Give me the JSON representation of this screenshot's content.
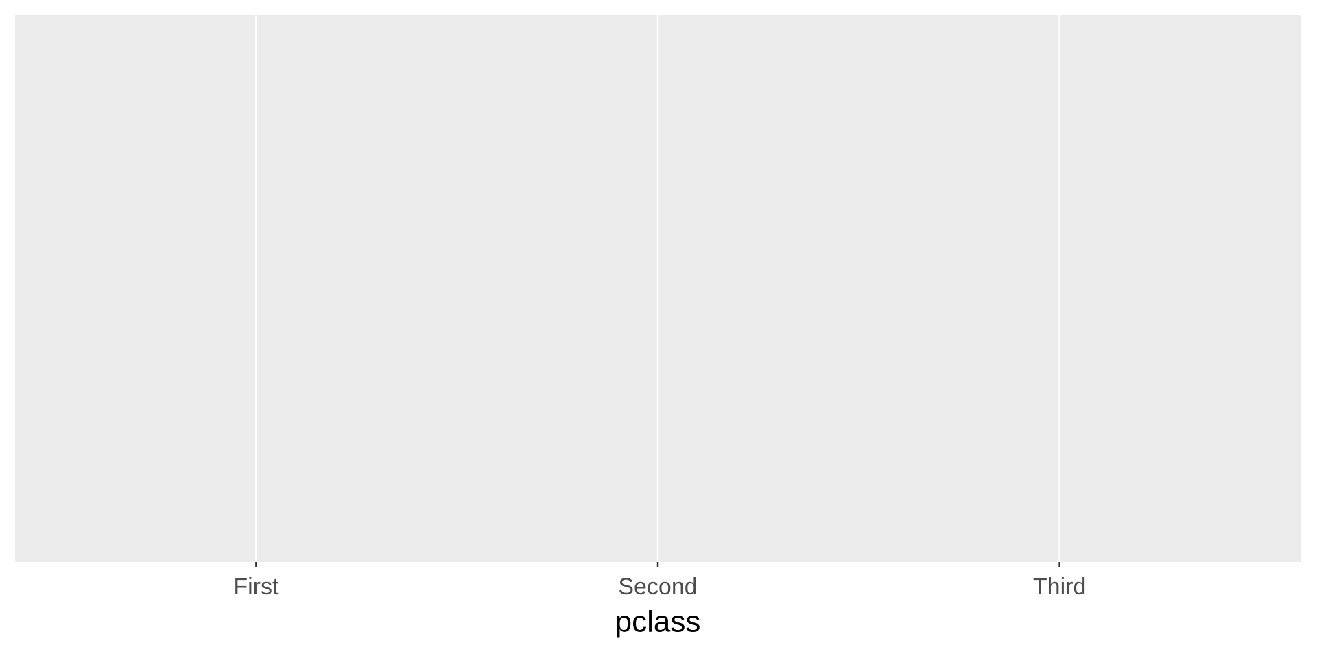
{
  "chart_data": {
    "type": "bar",
    "categories": [
      "First",
      "Second",
      "Third"
    ],
    "x_label": "pclass",
    "grid": true
  }
}
